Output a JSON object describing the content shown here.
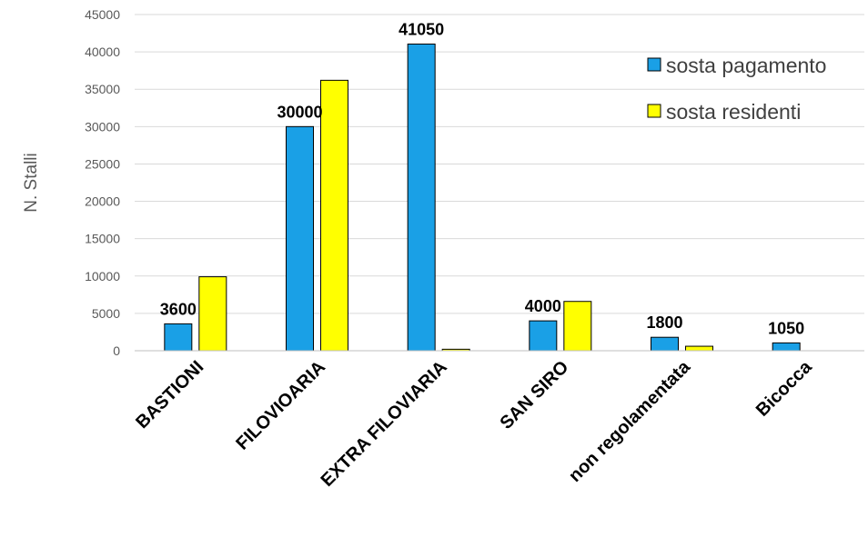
{
  "chart_data": {
    "type": "bar",
    "title": "",
    "xlabel": "",
    "ylabel": "N. Stalli",
    "ylim": [
      0,
      45000
    ],
    "yticks": [
      0,
      5000,
      10000,
      15000,
      20000,
      25000,
      30000,
      35000,
      40000,
      45000
    ],
    "grid": true,
    "legend_position": "top-right",
    "categories": [
      "BASTIONI",
      "FILOVIOARIA",
      "EXTRA FILOVIARIA",
      "SAN SIRO",
      "non regolamentata",
      "Bicocca"
    ],
    "series": [
      {
        "name": "sosta pagamento",
        "color": "#1aa0e6",
        "values": [
          3600,
          30000,
          41050,
          4000,
          1800,
          1050
        ]
      },
      {
        "name": "sosta residenti",
        "color": "#ffff00",
        "values": [
          9900,
          36200,
          200,
          6600,
          600,
          0
        ]
      }
    ],
    "data_labels": [
      "3600",
      "30000",
      "41050",
      "4000",
      "1800",
      "1050"
    ]
  }
}
